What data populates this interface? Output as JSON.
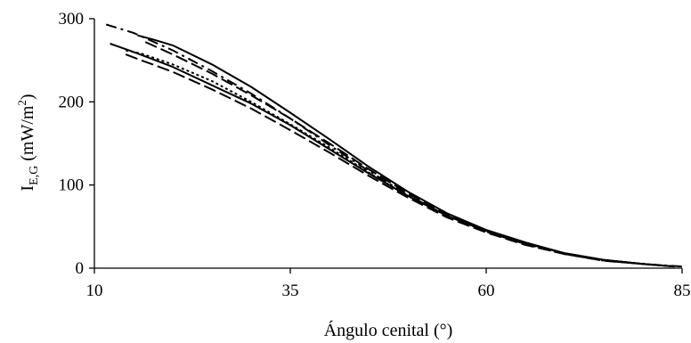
{
  "chart_data": {
    "type": "line",
    "title": "",
    "xlabel": "Ángulo cenital (°)",
    "ylabel": {
      "main": "I",
      "subscript": "E,G",
      "unit_prefix": " (mW/m",
      "unit_superscript": "2",
      "unit_suffix": ")"
    },
    "xlim": [
      10,
      85
    ],
    "ylim": [
      0,
      300
    ],
    "xticks": [
      "10",
      "35",
      "60",
      "85"
    ],
    "yticks": [
      "0",
      "100",
      "200",
      "300"
    ],
    "grid": false,
    "legend": "none",
    "colors": {
      "line": "#000000",
      "axis": "#000000",
      "background": "#ffffff"
    },
    "series": [
      {
        "style": "solid",
        "x": [
          12,
          15,
          20,
          25,
          30,
          35,
          40,
          45,
          50,
          55,
          60,
          65,
          70,
          75,
          80,
          84
        ],
        "y": [
          270,
          260,
          242,
          220,
          198,
          172,
          143,
          114,
          87,
          63,
          45,
          30,
          18,
          10,
          5,
          2
        ]
      },
      {
        "style": "dash-dot",
        "x": [
          11.5,
          15,
          20,
          25,
          30,
          35,
          40,
          45,
          50,
          55,
          60,
          65,
          70,
          75,
          80,
          85
        ],
        "y": [
          293,
          283,
          262,
          237,
          210,
          180,
          148,
          117,
          88,
          63,
          44,
          29,
          17,
          9,
          5,
          2
        ]
      },
      {
        "style": "solid",
        "x": [
          15.5,
          17.5,
          20,
          25,
          30,
          35,
          40,
          45,
          50,
          55,
          60,
          65,
          70,
          75,
          80,
          84
        ],
        "y": [
          280,
          275,
          268,
          245,
          218,
          187,
          155,
          122,
          92,
          66,
          46,
          31,
          18,
          10,
          5,
          2
        ]
      },
      {
        "style": "long-dash",
        "x": [
          16.5,
          20,
          25,
          30,
          35,
          40,
          45,
          50,
          55,
          60,
          65,
          70,
          75,
          80,
          84
        ],
        "y": [
          272,
          257,
          234,
          208,
          180,
          150,
          119,
          90,
          64,
          45,
          30,
          18,
          10,
          5,
          2
        ]
      },
      {
        "style": "dotted",
        "x": [
          14,
          16,
          20,
          25,
          30,
          35,
          40,
          45,
          50,
          55,
          60,
          65,
          70,
          75,
          80,
          84
        ],
        "y": [
          262,
          258,
          245,
          225,
          200,
          173,
          145,
          115,
          87,
          63,
          44,
          29,
          17,
          9,
          5,
          2
        ]
      },
      {
        "style": "long-dash",
        "x": [
          14,
          16,
          20,
          25,
          30,
          35,
          40,
          45,
          50,
          55,
          60,
          65,
          70,
          75,
          80,
          84
        ],
        "y": [
          257,
          250,
          236,
          215,
          192,
          166,
          139,
          111,
          85,
          61,
          43,
          28,
          17,
          9,
          5,
          2
        ]
      }
    ]
  }
}
